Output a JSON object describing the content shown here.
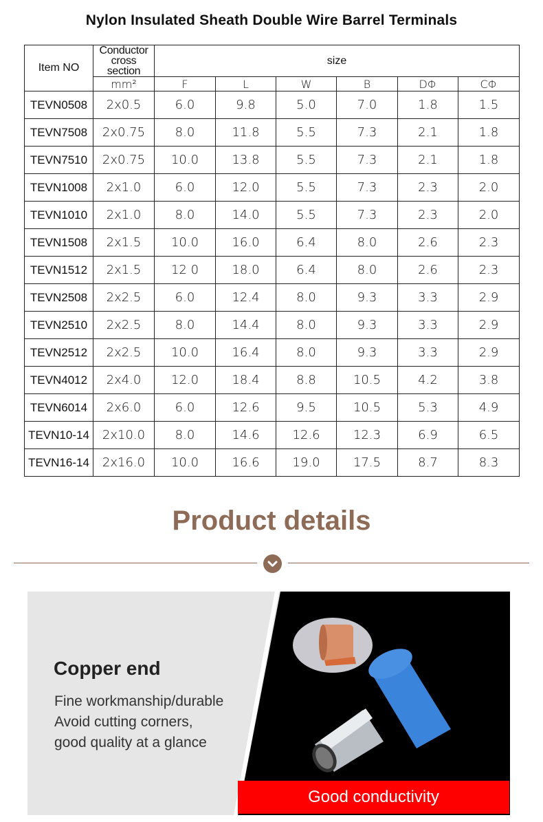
{
  "title": "Nylon Insulated Sheath Double Wire Barrel Terminals",
  "table": {
    "item_header": "Item NO",
    "conductor_header": "Conductor cross section",
    "unit": "mm²",
    "size_header": "size",
    "size_columns": [
      "F",
      "L",
      "W",
      "B",
      "DΦ",
      "CΦ"
    ],
    "rows": [
      [
        "TEVN0508",
        "2x0.5",
        "6.0",
        "9.8",
        "5.0",
        "7.0",
        "1.8",
        "1.5"
      ],
      [
        "TEVN7508",
        "2x0.75",
        "8.0",
        "11.8",
        "5.5",
        "7.3",
        "2.1",
        "1.8"
      ],
      [
        "TEVN7510",
        "2x0.75",
        "10.0",
        "13.8",
        "5.5",
        "7.3",
        "2.1",
        "1.8"
      ],
      [
        "TEVN1008",
        "2x1.0",
        "6.0",
        "12.0",
        "5.5",
        "7.3",
        "2.3",
        "2.0"
      ],
      [
        "TEVN1010",
        "2x1.0",
        "8.0",
        "14.0",
        "5.5",
        "7.3",
        "2.3",
        "2.0"
      ],
      [
        "TEVN1508",
        "2x1.5",
        "10.0",
        "16.0",
        "6.4",
        "8.0",
        "2.6",
        "2.3"
      ],
      [
        "TEVN1512",
        "2x1.5",
        "12 0",
        "18.0",
        "6.4",
        "8.0",
        "2.6",
        "2.3"
      ],
      [
        "TEVN2508",
        "2x2.5",
        "6.0",
        "12.4",
        "8.0",
        "9.3",
        "3.3",
        "2.9"
      ],
      [
        "TEVN2510",
        "2x2.5",
        "8.0",
        "14.4",
        "8.0",
        "9.3",
        "3.3",
        "2.9"
      ],
      [
        "TEVN2512",
        "2x2.5",
        "10.0",
        "16.4",
        "8.0",
        "9.3",
        "3.3",
        "2.9"
      ],
      [
        "TEVN4012",
        "2x4.0",
        "12.0",
        "18.4",
        "8.8",
        "10.5",
        "4.2",
        "3.8"
      ],
      [
        "TEVN6014",
        "2x6.0",
        "6.0",
        "12.6",
        "9.5",
        "10.5",
        "5.3",
        "4.9"
      ],
      [
        "TEVN10-14",
        "2x10.0",
        "8.0",
        "14.6",
        "12.6",
        "12.3",
        "6.9",
        "6.5"
      ],
      [
        "TEVN16-14",
        "2x16.0",
        "10.0",
        "16.6",
        "19.0",
        "17.5",
        "8.7",
        "8.3"
      ]
    ]
  },
  "details": {
    "heading": "Product details",
    "divider_icon": "chevron-down-icon",
    "feature_title": "Copper end",
    "feature_lines": [
      "Fine workmanship/durable",
      "Avoid cutting corners,",
      "good quality at a glance"
    ],
    "banner": "Good conductivity"
  },
  "colors": {
    "accent": "#8d6b57",
    "banner": "#ff0000",
    "sheath": "#2f7fd6"
  }
}
